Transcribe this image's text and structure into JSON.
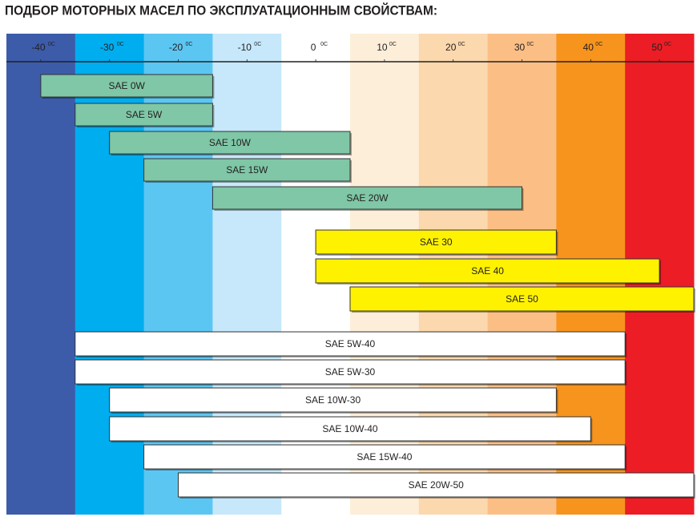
{
  "chart_data": {
    "type": "range-bar",
    "title": "ПОДБОР МОТОРНЫХ МАСЕЛ ПО ЭКСПЛУАТАЦИОННЫМ СВОЙСТВАМ:",
    "xlim": [
      -45,
      55
    ],
    "xticks": [
      -40,
      -30,
      -20,
      -10,
      0,
      10,
      20,
      30,
      40,
      50
    ],
    "xtick_superscript": "0C",
    "column_colors": [
      "#3c5caa",
      "#00adee",
      "#5cc6f2",
      "#c6e8fa",
      "#ffffff",
      "#fdeed9",
      "#fcd8ae",
      "#fbbf86",
      "#f7941e",
      "#ec1d25"
    ],
    "bars": [
      {
        "label": "SAE 0W",
        "start": -40,
        "end": -15,
        "color": "#7fc7a6"
      },
      {
        "label": "SAE 5W",
        "start": -35,
        "end": -15,
        "color": "#7fc7a6"
      },
      {
        "label": "SAE 10W",
        "start": -30,
        "end": 5,
        "color": "#7fc7a6"
      },
      {
        "label": "SAE 15W",
        "start": -25,
        "end": 5,
        "color": "#7fc7a6"
      },
      {
        "label": "SAE 20W",
        "start": -15,
        "end": 30,
        "color": "#7fc7a6"
      },
      {
        "label": "SAE 30",
        "start": 0,
        "end": 35,
        "color": "#fff200"
      },
      {
        "label": "SAE 40",
        "start": 0,
        "end": 50,
        "color": "#fff200"
      },
      {
        "label": "SAE 50",
        "start": 5,
        "end": 55,
        "color": "#fff200"
      },
      {
        "label": "SAE 5W-40",
        "start": -35,
        "end": 45,
        "color": "#ffffff"
      },
      {
        "label": "SAE 5W-30",
        "start": -35,
        "end": 45,
        "color": "#ffffff"
      },
      {
        "label": "SAE 10W-30",
        "start": -30,
        "end": 35,
        "color": "#ffffff"
      },
      {
        "label": "SAE 10W-40",
        "start": -30,
        "end": 40,
        "color": "#ffffff"
      },
      {
        "label": "SAE 15W-40",
        "start": -25,
        "end": 45,
        "color": "#ffffff"
      },
      {
        "label": "SAE 20W-50",
        "start": -20,
        "end": 55,
        "color": "#ffffff"
      }
    ]
  }
}
